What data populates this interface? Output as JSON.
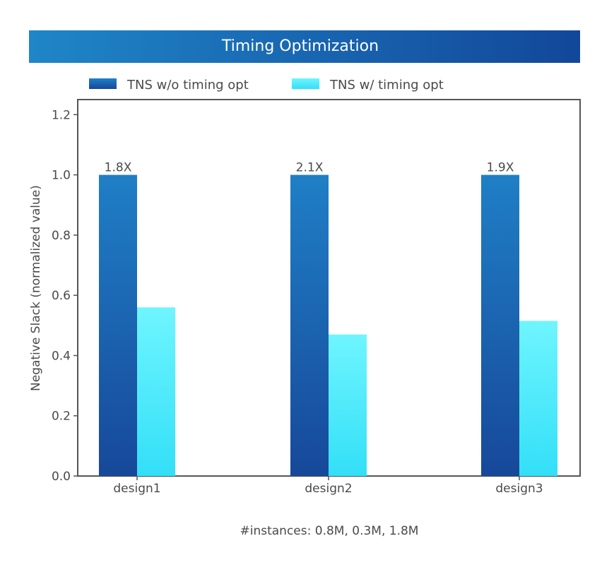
{
  "chart_data": {
    "type": "bar",
    "title": "Timing Optimization",
    "xlabel": "",
    "ylabel": "Negative Slack (normalized value)",
    "categories": [
      "design1",
      "design2",
      "design3"
    ],
    "series": [
      {
        "name": "TNS w/o timing opt",
        "values": [
          1.0,
          1.0,
          1.0
        ],
        "color_top": "#1f7fc6",
        "color_bottom": "#17489a"
      },
      {
        "name": "TNS w/ timing opt",
        "values": [
          0.56,
          0.47,
          0.515
        ],
        "color_top": "#6ff5ff",
        "color_bottom": "#33dff7"
      }
    ],
    "bar_labels": [
      "1.8X",
      "2.1X",
      "1.9X"
    ],
    "ylim": [
      0,
      1.25
    ],
    "yticks": [
      0.0,
      0.2,
      0.4,
      0.6,
      0.8,
      1.0,
      1.2
    ],
    "ytick_labels": [
      "0.0",
      "0.2",
      "0.4",
      "0.6",
      "0.8",
      "1.0",
      "1.2"
    ],
    "legend_position": "top",
    "grid": false,
    "footnote": "#instances: 0.8M, 0.3M, 1.8M"
  },
  "colors": {
    "title_bg_left": "#1f86c8",
    "title_bg_right": "#12479a",
    "axis": "#555555",
    "text": "#4a4a4a"
  }
}
